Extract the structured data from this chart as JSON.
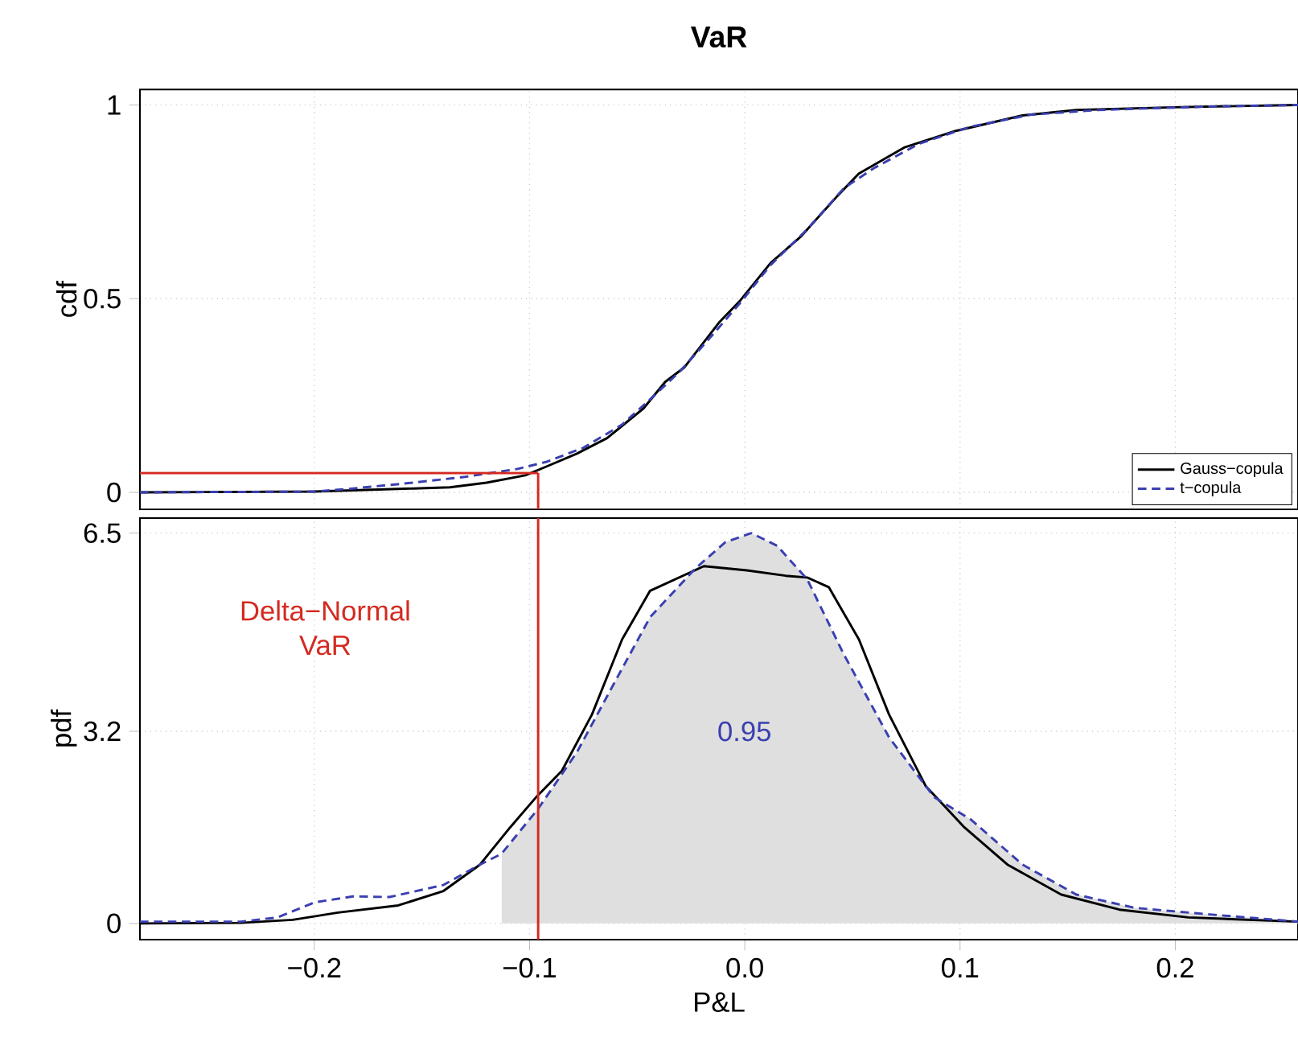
{
  "chart_data": [
    {
      "type": "line",
      "title": "VaR",
      "ylabel": "cdf",
      "xlim": [
        -0.281,
        0.257
      ],
      "ylim": [
        -0.044,
        1.04
      ],
      "xticks": [
        -0.2,
        -0.1,
        0,
        0.1,
        0.2
      ],
      "yticks": [
        0,
        0.5,
        1
      ],
      "tick_labels": "y",
      "grid": true,
      "legend": "bottom right",
      "marker": "none",
      "ref_lines": [
        {
          "axis": "y",
          "value": 0.05,
          "color": "#d42a20"
        },
        {
          "axis": "x",
          "value": -0.096,
          "color": "#d42a20"
        }
      ],
      "series": [
        {
          "name": "Gauss−copula",
          "color": "#000000",
          "line_style": "solid",
          "x": [
            -0.281,
            -0.2,
            -0.154,
            -0.137,
            -0.12,
            -0.102,
            -0.092,
            -0.078,
            -0.064,
            -0.047,
            -0.037,
            -0.028,
            -0.012,
            -0.002,
            0.012,
            0.026,
            0.043,
            0.053,
            0.074,
            0.098,
            0.129,
            0.154,
            0.199,
            0.257
          ],
          "values": [
            0,
            0.002,
            0.01,
            0.013,
            0.025,
            0.044,
            0.067,
            0.1,
            0.14,
            0.217,
            0.285,
            0.323,
            0.438,
            0.496,
            0.592,
            0.66,
            0.765,
            0.823,
            0.89,
            0.933,
            0.973,
            0.987,
            0.994,
            1.0
          ]
        },
        {
          "name": "t−copula",
          "color": "#3a3fb0",
          "line_style": "dashed",
          "x": [
            -0.281,
            -0.2,
            -0.182,
            -0.154,
            -0.13,
            -0.106,
            -0.092,
            -0.075,
            -0.057,
            -0.044,
            -0.03,
            -0.016,
            -0.002,
            0.012,
            0.029,
            0.046,
            0.06,
            0.081,
            0.105,
            0.133,
            0.164,
            0.216,
            0.257
          ],
          "values": [
            0,
            0.002,
            0.01,
            0.025,
            0.04,
            0.06,
            0.079,
            0.115,
            0.175,
            0.24,
            0.313,
            0.4,
            0.49,
            0.587,
            0.679,
            0.785,
            0.837,
            0.9,
            0.944,
            0.975,
            0.987,
            0.996,
            1.0
          ]
        }
      ]
    },
    {
      "type": "line",
      "xlabel": "P&L",
      "ylabel": "pdf",
      "xlim": [
        -0.281,
        0.257
      ],
      "ylim": [
        -0.27,
        6.75
      ],
      "xticks": [
        {
          "value": -0.2,
          "label": "−0.2"
        },
        {
          "value": -0.1,
          "label": "−0.1"
        },
        {
          "value": 0,
          "label": "0.0"
        },
        {
          "value": 0.1,
          "label": "0.1"
        },
        {
          "value": 0.2,
          "label": "0.2"
        }
      ],
      "yticks": [
        0,
        3.2,
        6.5
      ],
      "grid": true,
      "marker": "none",
      "ref_lines": [
        {
          "axis": "x",
          "value": -0.096,
          "color": "#d42a20",
          "label": "Delta−Normal VaR"
        }
      ],
      "annotations": [
        "0.95"
      ],
      "series": [
        {
          "type": "area",
          "color": "#dfdfdf",
          "x": [
            -0.113,
            -0.096,
            -0.078,
            -0.061,
            -0.044,
            -0.023,
            -0.009,
            0.003,
            0.015,
            0.029,
            0.046,
            0.067,
            0.088,
            0.105,
            0.129,
            0.154,
            0.181,
            0.216,
            0.257
          ],
          "values": [
            1.16,
            1.91,
            2.85,
            3.98,
            5.1,
            5.91,
            6.35,
            6.5,
            6.29,
            5.73,
            4.48,
            3.1,
            2.1,
            1.73,
            0.98,
            0.48,
            0.26,
            0.15,
            0.03
          ]
        },
        {
          "color": "#000000",
          "line_style": "solid",
          "x": [
            -0.281,
            -0.234,
            -0.21,
            -0.189,
            -0.161,
            -0.14,
            -0.123,
            -0.109,
            -0.097,
            -0.085,
            -0.071,
            -0.057,
            -0.044,
            -0.019,
            0.001,
            0.019,
            0.029,
            0.039,
            0.053,
            0.067,
            0.084,
            0.102,
            0.122,
            0.147,
            0.174,
            0.206,
            0.257
          ],
          "values": [
            0,
            0.01,
            0.06,
            0.18,
            0.3,
            0.54,
            0.98,
            1.6,
            2.1,
            2.54,
            3.48,
            4.73,
            5.54,
            5.95,
            5.88,
            5.79,
            5.76,
            5.6,
            4.73,
            3.48,
            2.29,
            1.6,
            0.98,
            0.48,
            0.23,
            0.1,
            0.03
          ]
        },
        {
          "color": "#3a3fb0",
          "line_style": "dashed",
          "x": [
            -0.281,
            -0.234,
            -0.217,
            -0.2,
            -0.182,
            -0.165,
            -0.14,
            -0.123,
            -0.113,
            -0.096,
            -0.078,
            -0.061,
            -0.044,
            -0.023,
            -0.009,
            0.003,
            0.015,
            0.029,
            0.046,
            0.067,
            0.088,
            0.105,
            0.129,
            0.154,
            0.181,
            0.216,
            0.257
          ],
          "values": [
            0.03,
            0.03,
            0.1,
            0.35,
            0.45,
            0.44,
            0.64,
            0.98,
            1.16,
            1.91,
            2.85,
            3.98,
            5.1,
            5.91,
            6.35,
            6.5,
            6.29,
            5.73,
            4.48,
            3.1,
            2.1,
            1.73,
            0.98,
            0.48,
            0.26,
            0.15,
            0.03
          ]
        }
      ]
    }
  ]
}
